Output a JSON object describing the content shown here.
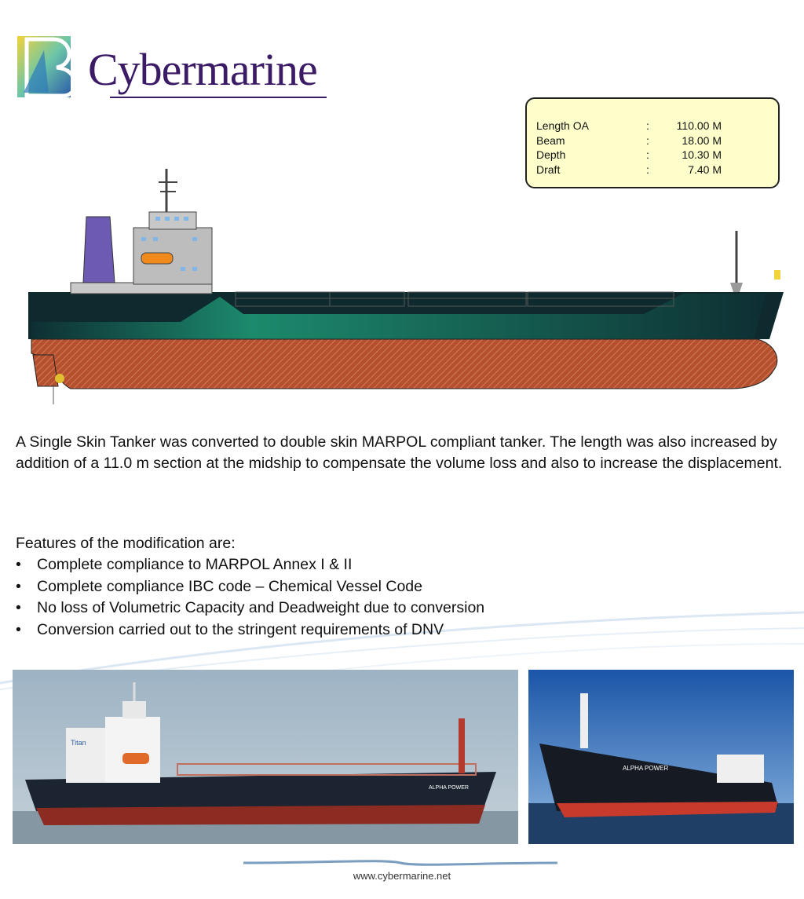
{
  "brand": {
    "logo_text": "Cybermarine",
    "logo_colors": [
      "#3b1a66",
      "#2aa7a0",
      "#f2d33a"
    ]
  },
  "specs": [
    {
      "label": "Length OA",
      "sep": ":",
      "value": "110.00 M"
    },
    {
      "label": "Beam",
      "sep": ":",
      "value": "18.00 M"
    },
    {
      "label": "Depth",
      "sep": ":",
      "value": "10.30 M"
    },
    {
      "label": "Draft",
      "sep": ":",
      "value": "7.40 M"
    }
  ],
  "description": "A Single Skin Tanker was converted to double skin MARPOL compliant tanker. The length was also increased by addition of a 11.0 m section at the midship to compensate the volume loss and also to increase the displacement.",
  "features": {
    "title": "Features of the modification are:",
    "items": [
      "Complete compliance to MARPOL Annex I & II",
      "Complete compliance IBC code – Chemical Vessel Code",
      "No loss of Volumetric Capacity and Deadweight due to conversion",
      "Conversion carried out to the stringent requirements of DNV"
    ],
    "bullet": "•"
  },
  "photos": {
    "photo1_ship_name": "ALPHA POWER",
    "photo1_funnel_mark": "Titan",
    "photo2_ship_name": "ALPHA POWER"
  },
  "footer": {
    "url": "www.cybermarine.net"
  },
  "colors": {
    "hull_top": "#0e3a3a",
    "hull_green": "#1c8a6c",
    "hull_bottom": "#b5502f",
    "funnel": "#6d5bb3",
    "spec_bg": "#ffffcc"
  }
}
